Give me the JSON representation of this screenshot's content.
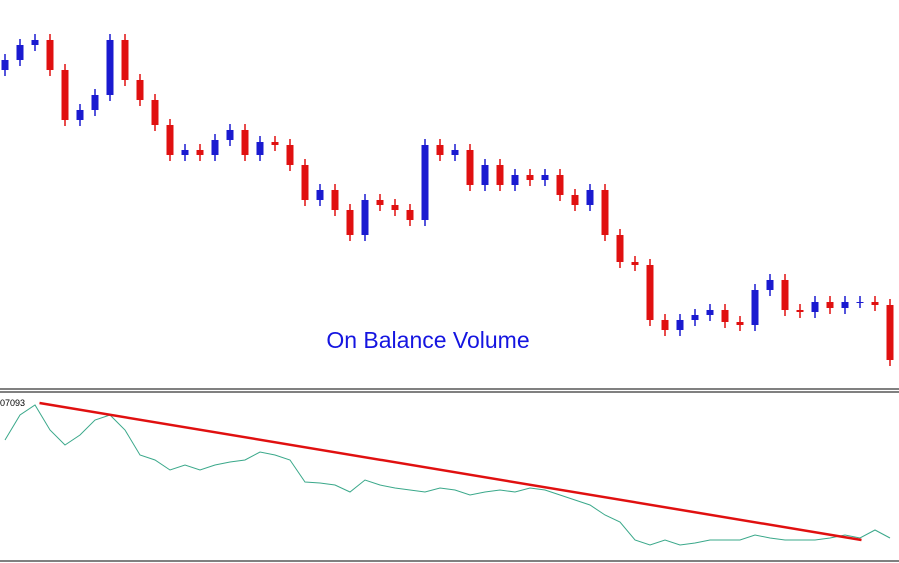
{
  "chart_data": [
    {
      "type": "candlestick",
      "title": "On Balance Volume",
      "title_color": "#1515e0",
      "up_color": "#1a1ad0",
      "down_color": "#e01010",
      "ylim": [
        0,
        390
      ],
      "open": [
        320,
        330,
        345,
        350,
        320,
        270,
        280,
        295,
        350,
        310,
        290,
        265,
        235,
        240,
        235,
        250,
        260,
        235,
        248,
        245,
        225,
        190,
        200,
        180,
        155,
        190,
        185,
        180,
        170,
        245,
        235,
        240,
        205,
        225,
        205,
        215,
        210,
        215,
        195,
        185,
        200,
        155,
        128,
        125,
        70,
        60,
        70,
        75,
        80,
        68,
        65,
        100,
        110,
        80,
        78,
        88,
        82,
        88,
        88,
        85
      ],
      "close": [
        330,
        345,
        350,
        320,
        270,
        280,
        295,
        350,
        310,
        290,
        265,
        235,
        240,
        235,
        250,
        260,
        235,
        248,
        245,
        225,
        190,
        200,
        180,
        155,
        190,
        185,
        180,
        170,
        245,
        235,
        240,
        205,
        225,
        205,
        215,
        210,
        215,
        195,
        185,
        200,
        155,
        128,
        125,
        70,
        60,
        70,
        75,
        80,
        68,
        65,
        100,
        110,
        80,
        78,
        88,
        82,
        88,
        88,
        85,
        30
      ],
      "high": [
        336,
        351,
        356,
        356,
        326,
        286,
        301,
        356,
        356,
        316,
        296,
        271,
        246,
        246,
        256,
        266,
        266,
        254,
        254,
        251,
        231,
        206,
        206,
        186,
        196,
        196,
        191,
        186,
        251,
        251,
        246,
        246,
        231,
        231,
        221,
        221,
        221,
        221,
        201,
        206,
        206,
        161,
        134,
        131,
        76,
        76,
        81,
        86,
        86,
        74,
        106,
        116,
        116,
        86,
        94,
        94,
        94,
        94,
        94,
        91
      ],
      "low": [
        314,
        324,
        339,
        314,
        264,
        264,
        274,
        289,
        304,
        284,
        259,
        229,
        229,
        229,
        229,
        244,
        229,
        229,
        239,
        219,
        184,
        184,
        174,
        149,
        149,
        179,
        174,
        164,
        164,
        229,
        229,
        199,
        199,
        199,
        199,
        204,
        204,
        189,
        179,
        179,
        149,
        122,
        119,
        64,
        54,
        54,
        64,
        69,
        62,
        59,
        59,
        94,
        74,
        72,
        72,
        76,
        76,
        82,
        79,
        24
      ]
    },
    {
      "type": "line",
      "label": "07093",
      "color": "#3aa88a",
      "ylim": [
        0,
        167
      ],
      "values": [
        120,
        145,
        155,
        130,
        115,
        125,
        140,
        145,
        130,
        105,
        100,
        90,
        95,
        90,
        95,
        98,
        100,
        108,
        105,
        100,
        78,
        77,
        75,
        68,
        80,
        75,
        72,
        70,
        68,
        72,
        70,
        65,
        68,
        70,
        68,
        72,
        70,
        65,
        60,
        55,
        45,
        38,
        20,
        15,
        20,
        15,
        17,
        20,
        20,
        20,
        25,
        22,
        20,
        20,
        20,
        22,
        25,
        22,
        30,
        22
      ],
      "trend_line": {
        "color": "#e01010",
        "x": [
          2.3,
          57.1
        ],
        "values": [
          157,
          20
        ]
      }
    }
  ]
}
